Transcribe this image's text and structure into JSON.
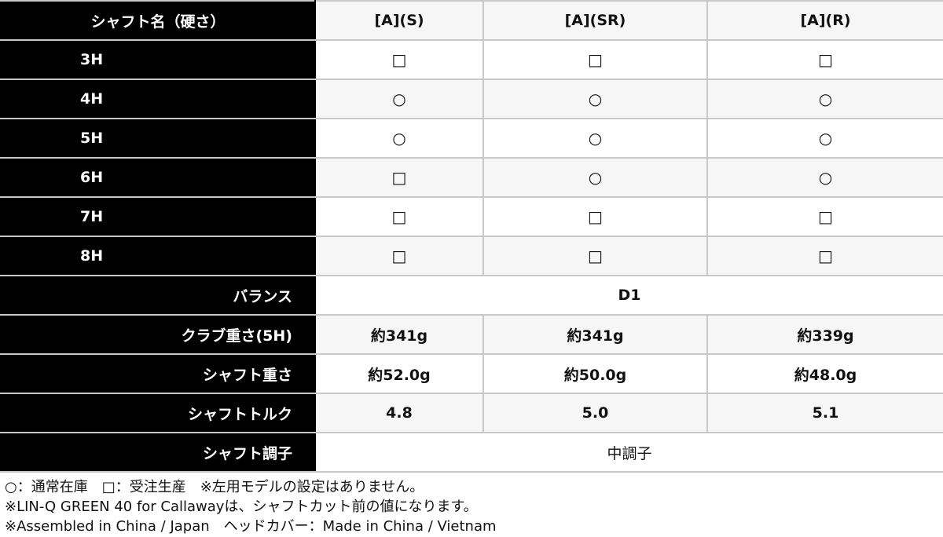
{
  "header": {
    "label": "シャフト名（硬さ）",
    "columns": [
      "[A](S)",
      "[A](SR)",
      "[A](R)"
    ]
  },
  "rows": [
    {
      "label": "3H",
      "cells": [
        "□",
        "□",
        "□"
      ]
    },
    {
      "label": "4H",
      "cells": [
        "○",
        "○",
        "○"
      ]
    },
    {
      "label": "5H",
      "cells": [
        "○",
        "○",
        "○"
      ]
    },
    {
      "label": "6H",
      "cells": [
        "□",
        "○",
        "○"
      ]
    },
    {
      "label": "7H",
      "cells": [
        "□",
        "□",
        "□"
      ]
    },
    {
      "label": "8H",
      "cells": [
        "□",
        "□",
        "□"
      ]
    }
  ],
  "specs": {
    "balance": {
      "label": "バランス",
      "value": "D1"
    },
    "club_weight": {
      "label": "クラブ重さ(5H)",
      "cells": [
        "約341g",
        "約341g",
        "約339g"
      ]
    },
    "shaft_weight": {
      "label": "シャフト重さ",
      "cells": [
        "約52.0g",
        "約50.0g",
        "約48.0g"
      ]
    },
    "torque": {
      "label": "シャフトトルク",
      "cells": [
        "4.8",
        "5.0",
        "5.1"
      ]
    },
    "kick_point": {
      "label": "シャフト調子",
      "value": "中調子"
    }
  },
  "notes": [
    "○：通常在庫　□：受注生産　※左用モデルの設定はありません。",
    "※LIN-Q GREEN 40 for Callawayは、シャフトカット前の値になります。",
    "※Assembled in China / Japan　ヘッドカバー：Made in China / Vietnam"
  ]
}
